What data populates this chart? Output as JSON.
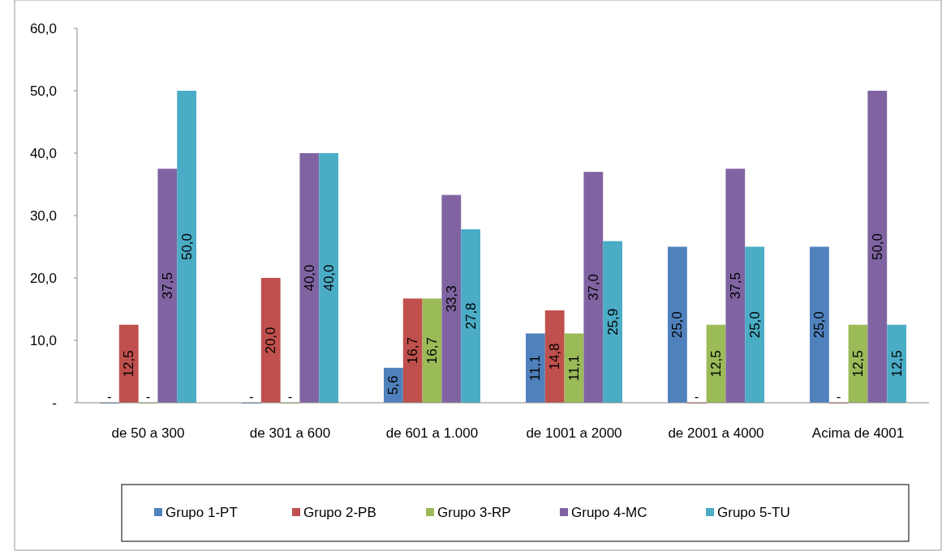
{
  "chart_data": {
    "type": "bar",
    "categories": [
      "de 50 a 300",
      "de 301 a 600",
      "de 601 a 1.000",
      "de 1001 a 2000",
      "de 2001 a 4000",
      "Acima de 4001"
    ],
    "series": [
      {
        "name": "Grupo 1-PT",
        "color": "#4f81bd",
        "values": [
          0,
          0,
          5.6,
          11.1,
          25.0,
          25.0
        ],
        "value_labels": [
          "-",
          "-",
          "5,6",
          "11,1",
          "25,0",
          "25,0"
        ]
      },
      {
        "name": "Grupo 2-PB",
        "color": "#c0504d",
        "values": [
          12.5,
          20.0,
          16.7,
          14.8,
          0,
          0
        ],
        "value_labels": [
          "12,5",
          "20,0",
          "16,7",
          "14,8",
          "-",
          "-"
        ]
      },
      {
        "name": "Grupo 3-RP",
        "color": "#9bbb59",
        "values": [
          0,
          0,
          16.7,
          11.1,
          12.5,
          12.5
        ],
        "value_labels": [
          "-",
          "-",
          "16,7",
          "11,1",
          "12,5",
          "12,5"
        ]
      },
      {
        "name": "Grupo 4-MC",
        "color": "#8064a2",
        "values": [
          37.5,
          40.0,
          33.3,
          37.0,
          37.5,
          50.0
        ],
        "value_labels": [
          "37,5",
          "40,0",
          "33,3",
          "37,0",
          "37,5",
          "50,0"
        ]
      },
      {
        "name": "Grupo 5-TU",
        "color": "#4bacc6",
        "values": [
          50.0,
          40.0,
          27.8,
          25.9,
          25.0,
          12.5
        ],
        "value_labels": [
          "50,0",
          "40,0",
          "27,8",
          "25,9",
          "25,0",
          "12,5"
        ]
      }
    ],
    "ylim": [
      0,
      60
    ],
    "yticks": [
      {
        "value": 0,
        "label": "-"
      },
      {
        "value": 10,
        "label": "10,0"
      },
      {
        "value": 20,
        "label": "20,0"
      },
      {
        "value": 30,
        "label": "30,0"
      },
      {
        "value": 40,
        "label": "40,0"
      },
      {
        "value": 50,
        "label": "50,0"
      },
      {
        "value": 60,
        "label": "60,0"
      }
    ],
    "grid": false,
    "legend": "bottom"
  }
}
